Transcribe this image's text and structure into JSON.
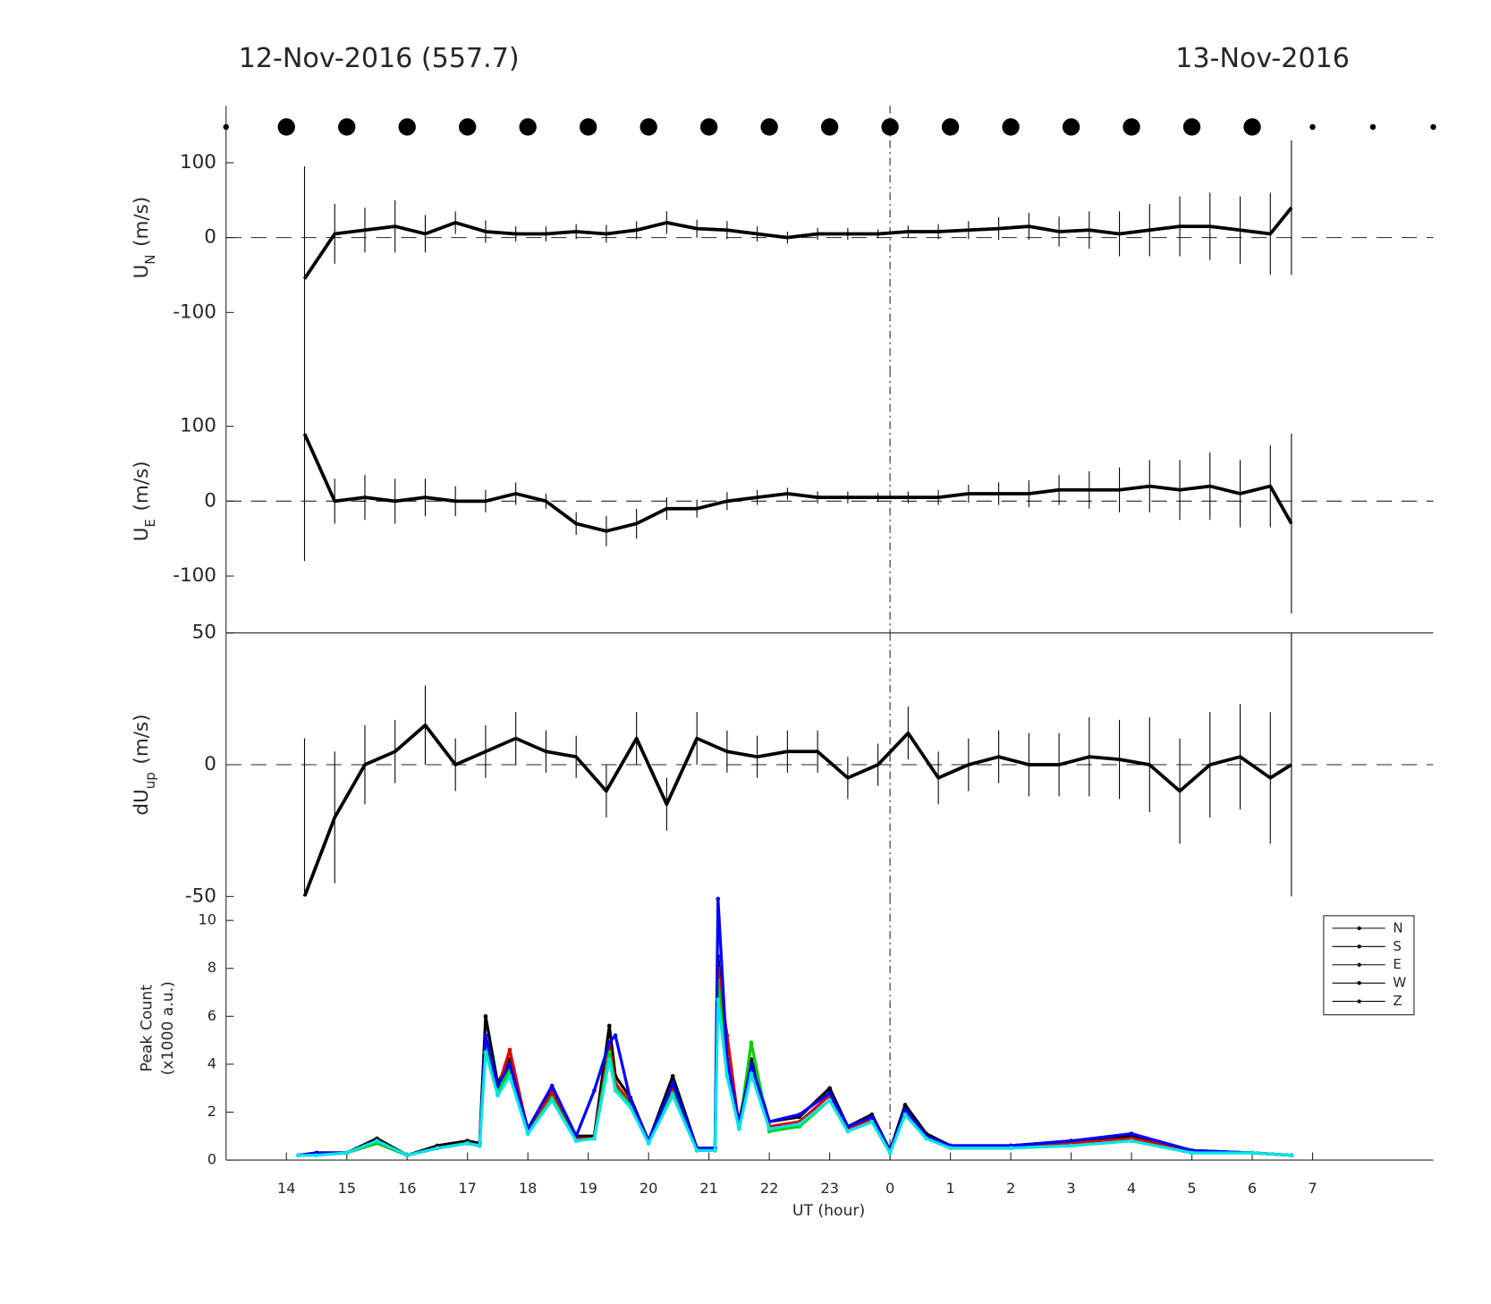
{
  "chart_data": [
    {
      "type": "errorbar",
      "title_left": "12-Nov-2016 (557.7)",
      "title_right": "13-Nov-2016",
      "markers": {
        "x": [
          13,
          14,
          15,
          16,
          17,
          18,
          19,
          20,
          21,
          22,
          23,
          24,
          25,
          26,
          27,
          28,
          29,
          30,
          31,
          32,
          33
        ],
        "sizes": [
          3,
          9,
          9,
          9,
          9,
          9,
          9,
          9,
          9,
          9,
          9,
          9,
          9,
          9,
          9,
          9,
          9,
          9,
          3,
          3,
          3
        ]
      },
      "ylabel": {
        "text": "U",
        "sub": "N",
        "unit": "(m/s)"
      },
      "xlim": [
        13,
        33
      ],
      "ylim": [
        -176,
        176
      ],
      "yticks": [
        -100,
        0,
        100
      ],
      "zero_line": true,
      "vline": 24,
      "color": "#000000",
      "x": [
        14.3,
        14.8,
        15.3,
        15.8,
        16.3,
        16.8,
        17.3,
        17.8,
        18.3,
        18.8,
        19.3,
        19.8,
        20.3,
        20.8,
        21.3,
        21.8,
        22.3,
        22.8,
        23.3,
        23.8,
        24.3,
        24.8,
        25.3,
        25.8,
        26.3,
        26.8,
        27.3,
        27.8,
        28.3,
        28.8,
        29.3,
        29.8,
        30.3,
        30.65
      ],
      "values": [
        -55,
        5,
        10,
        15,
        5,
        20,
        8,
        5,
        5,
        8,
        5,
        10,
        20,
        12,
        10,
        5,
        0,
        5,
        5,
        5,
        8,
        8,
        10,
        12,
        15,
        8,
        10,
        5,
        10,
        15,
        15,
        10,
        5,
        40
      ],
      "errors": [
        150,
        40,
        30,
        35,
        25,
        15,
        15,
        10,
        10,
        10,
        12,
        12,
        15,
        12,
        12,
        10,
        8,
        8,
        8,
        6,
        8,
        10,
        12,
        15,
        18,
        20,
        25,
        30,
        35,
        40,
        45,
        45,
        55,
        90
      ]
    },
    {
      "type": "errorbar",
      "ylabel": {
        "text": "U",
        "sub": "E",
        "unit": "(m/s)"
      },
      "xlim": [
        13,
        33
      ],
      "ylim": [
        -176,
        176
      ],
      "yticks": [
        -100,
        0,
        100
      ],
      "zero_line": true,
      "vline": 24,
      "color": "#000000",
      "x": [
        14.3,
        14.8,
        15.3,
        15.8,
        16.3,
        16.8,
        17.3,
        17.8,
        18.3,
        18.8,
        19.3,
        19.8,
        20.3,
        20.8,
        21.3,
        21.8,
        22.3,
        22.8,
        23.3,
        23.8,
        24.3,
        24.8,
        25.3,
        25.8,
        26.3,
        26.8,
        27.3,
        27.8,
        28.3,
        28.8,
        29.3,
        29.8,
        30.3,
        30.65
      ],
      "values": [
        90,
        0,
        5,
        0,
        5,
        0,
        0,
        10,
        0,
        -30,
        -40,
        -30,
        -10,
        -10,
        0,
        5,
        10,
        5,
        5,
        5,
        5,
        5,
        10,
        10,
        10,
        15,
        15,
        15,
        20,
        15,
        20,
        10,
        20,
        -30
      ],
      "errors": [
        170,
        30,
        30,
        30,
        25,
        20,
        15,
        15,
        10,
        15,
        20,
        20,
        15,
        12,
        12,
        10,
        8,
        8,
        8,
        6,
        8,
        10,
        12,
        15,
        18,
        20,
        25,
        30,
        35,
        40,
        45,
        45,
        55,
        120
      ]
    },
    {
      "type": "errorbar",
      "ylabel": {
        "text": "dU",
        "sub": "up",
        "unit": "(m/s)"
      },
      "xlim": [
        13,
        33
      ],
      "ylim": [
        -50,
        50
      ],
      "yticks": [
        -50,
        0,
        50
      ],
      "zero_line": true,
      "vline": 24,
      "color": "#000000",
      "x": [
        14.3,
        14.8,
        15.3,
        15.8,
        16.3,
        16.8,
        17.3,
        17.8,
        18.3,
        18.8,
        19.3,
        19.8,
        20.3,
        20.8,
        21.3,
        21.8,
        22.3,
        22.8,
        23.3,
        23.8,
        24.3,
        24.8,
        25.3,
        25.8,
        26.3,
        26.8,
        27.3,
        27.8,
        28.3,
        28.8,
        29.3,
        29.8,
        30.3,
        30.65
      ],
      "values": [
        -50,
        -20,
        0,
        5,
        15,
        0,
        5,
        10,
        5,
        3,
        -10,
        10,
        -15,
        10,
        5,
        3,
        5,
        5,
        -5,
        0,
        12,
        -5,
        0,
        3,
        0,
        0,
        3,
        2,
        0,
        -10,
        0,
        3,
        -5,
        0
      ],
      "errors": [
        60,
        25,
        15,
        12,
        15,
        10,
        10,
        10,
        8,
        8,
        10,
        10,
        10,
        10,
        8,
        8,
        8,
        8,
        8,
        8,
        10,
        10,
        10,
        10,
        12,
        12,
        15,
        15,
        18,
        20,
        20,
        20,
        25,
        50
      ]
    },
    {
      "type": "line",
      "ylabel": [
        "Peak Count",
        "(x1000 a.u.)"
      ],
      "xlabel": "UT (hour)",
      "xlim": [
        13,
        33
      ],
      "ylim": [
        0,
        11
      ],
      "yticks": [
        0,
        2,
        4,
        6,
        8,
        10
      ],
      "vline": 24,
      "xticks": [
        14,
        15,
        16,
        17,
        18,
        19,
        20,
        21,
        22,
        23,
        {
          "value": 24,
          "label": "0"
        },
        {
          "value": 25,
          "label": "1"
        },
        {
          "value": 26,
          "label": "2"
        },
        {
          "value": 27,
          "label": "3"
        },
        {
          "value": 28,
          "label": "4"
        },
        {
          "value": 29,
          "label": "5"
        },
        {
          "value": 30,
          "label": "6"
        },
        {
          "value": 31,
          "label": "7"
        }
      ],
      "legend": "upper right",
      "legend_color": "#000000",
      "x": [
        14.2,
        14.5,
        15,
        15.5,
        16,
        16.5,
        17,
        17.2,
        17.3,
        17.5,
        17.7,
        18,
        18.4,
        18.8,
        19.1,
        19.35,
        19.45,
        19.7,
        20,
        20.4,
        20.8,
        21.1,
        21.15,
        21.3,
        21.5,
        21.7,
        22,
        22.5,
        23,
        23.3,
        23.7,
        24,
        24.25,
        24.6,
        25,
        26,
        27,
        28,
        29,
        30,
        30.65
      ],
      "series": [
        {
          "name": "N",
          "color": "#000000",
          "values": [
            0.2,
            0.3,
            0.3,
            0.9,
            0.2,
            0.6,
            0.8,
            0.7,
            6.0,
            3.2,
            4.2,
            1.3,
            3.0,
            1.0,
            1.0,
            5.6,
            3.5,
            2.6,
            0.8,
            3.5,
            0.5,
            0.5,
            8.5,
            4.0,
            1.6,
            4.2,
            1.6,
            1.8,
            3.0,
            1.4,
            1.9,
            0.4,
            2.3,
            1.1,
            0.6,
            0.6,
            0.8,
            1.0,
            0.4,
            0.3,
            0.2
          ]
        },
        {
          "name": "S",
          "color": "#e00000",
          "values": [
            0.2,
            0.3,
            0.3,
            0.8,
            0.2,
            0.5,
            0.7,
            0.6,
            5.1,
            3.0,
            4.6,
            1.2,
            2.8,
            0.9,
            0.9,
            4.8,
            3.2,
            2.4,
            0.7,
            3.0,
            0.5,
            0.5,
            8.0,
            5.2,
            1.4,
            4.0,
            1.4,
            1.6,
            2.7,
            1.3,
            1.7,
            0.4,
            2.0,
            1.0,
            0.5,
            0.5,
            0.7,
            0.9,
            0.4,
            0.3,
            0.2
          ]
        },
        {
          "name": "E",
          "color": "#00d000",
          "values": [
            0.2,
            0.2,
            0.3,
            0.7,
            0.2,
            0.5,
            0.7,
            0.6,
            4.8,
            2.8,
            3.8,
            1.1,
            2.6,
            0.8,
            0.9,
            4.5,
            3.0,
            2.3,
            0.7,
            2.8,
            0.4,
            0.4,
            7.5,
            3.6,
            1.3,
            4.9,
            1.2,
            1.4,
            2.5,
            1.2,
            1.6,
            0.3,
            1.9,
            0.9,
            0.5,
            0.5,
            0.6,
            0.8,
            0.3,
            0.3,
            0.2
          ]
        },
        {
          "name": "W",
          "color": "#0000ff",
          "values": [
            0.2,
            0.3,
            0.3,
            0.8,
            0.2,
            0.5,
            0.7,
            0.6,
            5.2,
            3.1,
            4.0,
            1.3,
            3.1,
            1.0,
            2.9,
            4.9,
            5.2,
            2.5,
            0.8,
            3.2,
            0.5,
            0.5,
            10.9,
            4.2,
            1.5,
            4.0,
            1.6,
            1.9,
            2.8,
            1.4,
            1.8,
            0.4,
            2.1,
            1.0,
            0.6,
            0.6,
            0.8,
            1.1,
            0.4,
            0.3,
            0.2
          ]
        },
        {
          "name": "Z",
          "color": "#00e5e5",
          "values": [
            0.2,
            0.2,
            0.3,
            0.8,
            0.2,
            0.5,
            0.7,
            0.6,
            4.5,
            2.7,
            3.5,
            1.1,
            2.5,
            0.8,
            0.9,
            4.2,
            2.9,
            2.2,
            0.7,
            2.7,
            0.4,
            0.4,
            6.7,
            3.5,
            1.3,
            3.6,
            1.3,
            1.5,
            2.5,
            1.2,
            1.6,
            0.3,
            1.9,
            0.9,
            0.5,
            0.5,
            0.6,
            0.8,
            0.3,
            0.3,
            0.2
          ]
        }
      ]
    }
  ]
}
